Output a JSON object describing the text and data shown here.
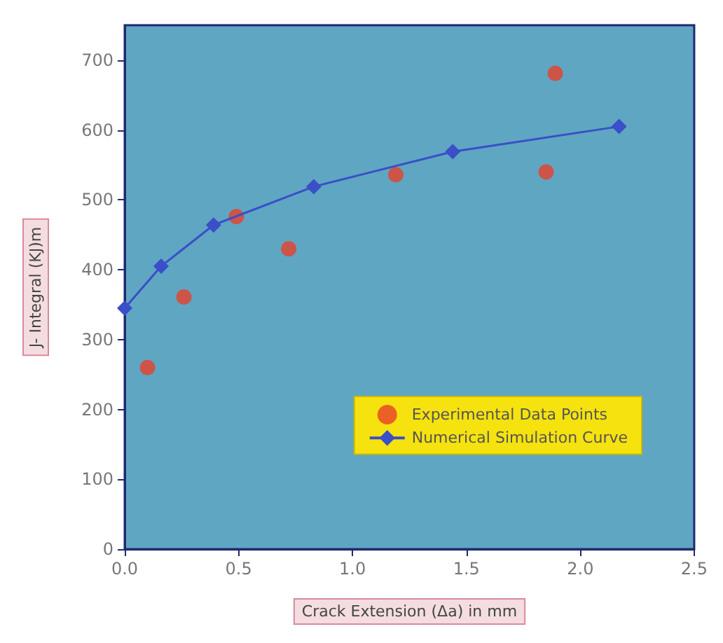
{
  "chart_data": {
    "type": "scatter",
    "xlabel": "Crack Extension (Δa) in mm",
    "ylabel": "J- Integral (KJ)m",
    "xlim": [
      0,
      2.5
    ],
    "xticks": [
      {
        "value": 0,
        "label": "0.0"
      },
      {
        "value": 0.5,
        "label": "0.5"
      },
      {
        "value": 1,
        "label": "1.0"
      },
      {
        "value": 1.5,
        "label": "1.5"
      },
      {
        "value": 2,
        "label": "2.0"
      },
      {
        "value": 2.5,
        "label": "2.5"
      }
    ],
    "ylim": [
      0,
      750
    ],
    "yticks": [
      0,
      100,
      200,
      300,
      400,
      500,
      600,
      700
    ],
    "grid": false,
    "legend": "right",
    "series": [
      {
        "name": "Experimental Data Points",
        "marker": "circle",
        "color": "#e8402a",
        "x": [
          0.1,
          0.26,
          0.49,
          0.72,
          1.19,
          1.85,
          1.89
        ],
        "values": [
          260,
          361,
          476,
          430,
          536,
          540,
          681
        ]
      },
      {
        "name": "Numerical Simulation Curve",
        "type": "line",
        "marker": "diamond",
        "color": "#3a4fc8",
        "x": [
          0,
          0.16,
          0.39,
          0.83,
          1.44,
          2.17
        ],
        "values": [
          345,
          405,
          464,
          519,
          569,
          605
        ]
      }
    ]
  }
}
